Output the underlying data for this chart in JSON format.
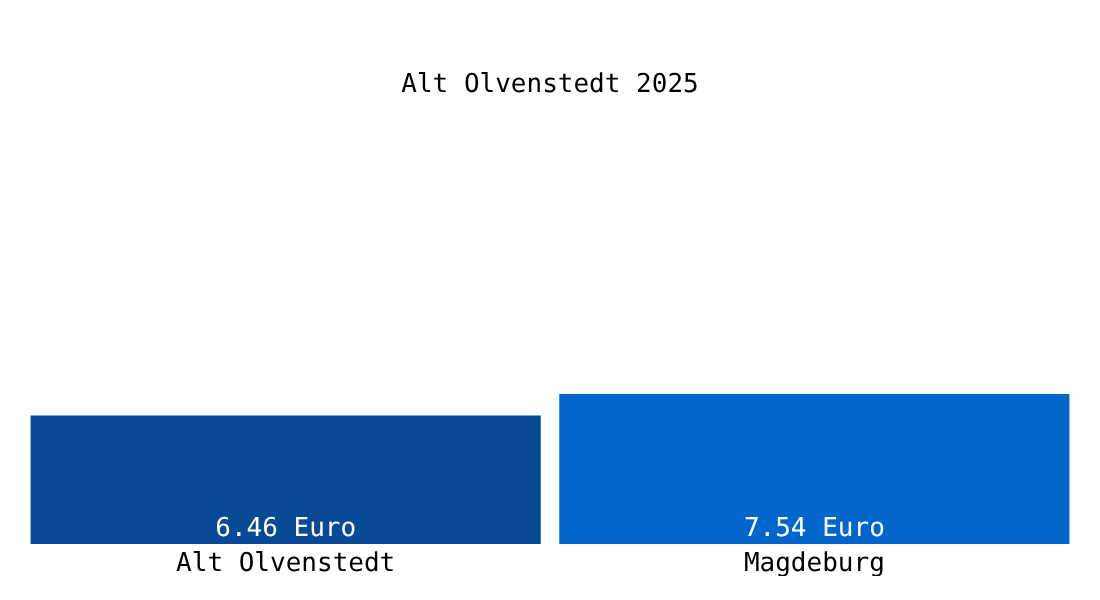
{
  "chart_data": {
    "type": "bar",
    "title": "Alt Olvenstedt 2025",
    "categories": [
      "Alt Olvenstedt",
      "Magdeburg"
    ],
    "values": [
      6.46,
      7.54
    ],
    "colors": [
      "#084a96",
      "#0066cc"
    ],
    "value_labels": [
      "6.46 Euro",
      "7.54 Euro"
    ]
  }
}
